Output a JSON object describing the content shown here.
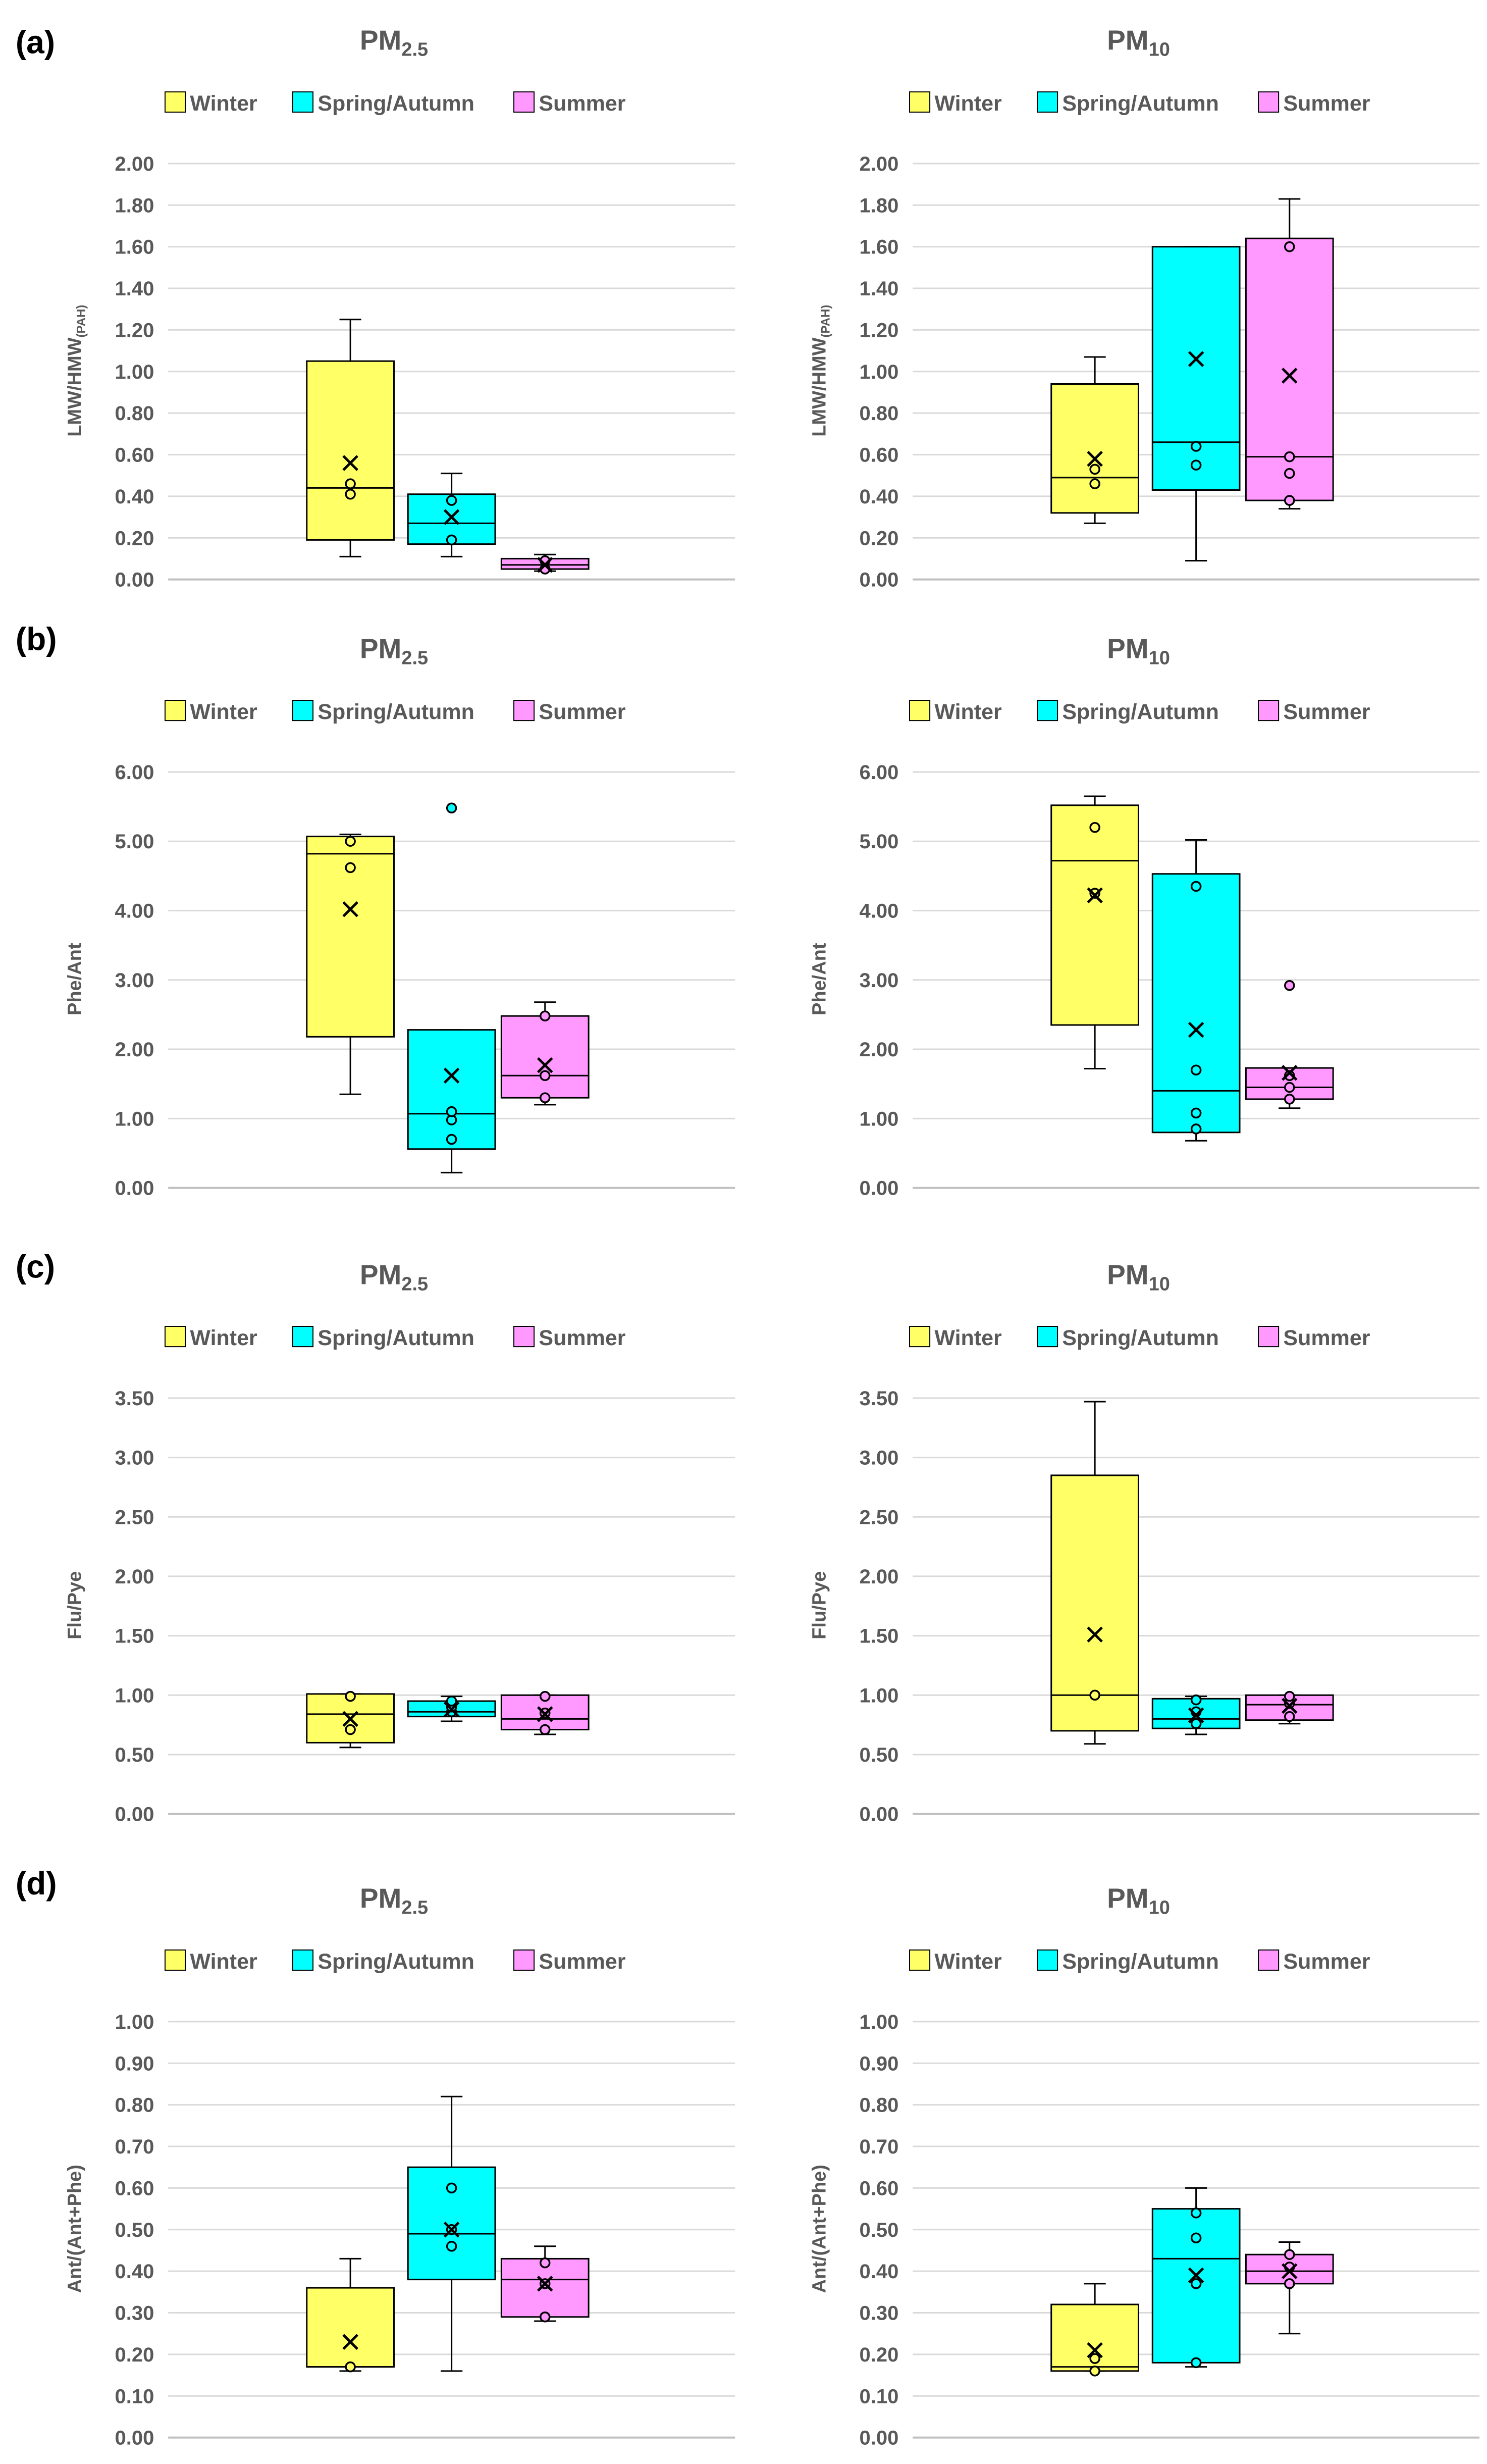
{
  "colors": {
    "winter": "#ffff66",
    "spring_autumn": "#00ffff",
    "summer": "#ff99ff",
    "grid": "#d9d9d9",
    "text": "#595959"
  },
  "legend": {
    "winter": "Winter",
    "spring_autumn": "Spring/Autumn",
    "summer": "Summer"
  },
  "panel_labels": [
    "(a)",
    "(b)",
    "(c)",
    "(d)"
  ],
  "chart_data": [
    {
      "type": "boxplot",
      "panel": "(a)",
      "title_base": "PM",
      "title_sub": "2.5",
      "ylabel_main": "LMW/HMW",
      "ylabel_sub": "(PAH)",
      "ylim": [
        0,
        2
      ],
      "ytick_step": 0.2,
      "ytick_decimals": 2,
      "ytick_labels": [
        "0.00",
        "0.20",
        "0.40",
        "0.60",
        "0.80",
        "1.00",
        "1.20",
        "1.40",
        "1.60",
        "1.80",
        "2.00"
      ],
      "series": [
        {
          "name": "Winter",
          "min": 0.11,
          "q1": 0.19,
          "median": 0.44,
          "q3": 1.05,
          "max": 1.25,
          "mean": 0.56,
          "points": [
            0.41,
            0.46
          ]
        },
        {
          "name": "Spring/Autumn",
          "min": 0.11,
          "q1": 0.17,
          "median": 0.27,
          "q3": 0.41,
          "max": 0.51,
          "mean": 0.3,
          "points": [
            0.19,
            0.38
          ]
        },
        {
          "name": "Summer",
          "min": 0.04,
          "q1": 0.05,
          "median": 0.07,
          "q3": 0.1,
          "max": 0.12,
          "mean": 0.07,
          "points": [
            0.05,
            0.09
          ]
        }
      ]
    },
    {
      "type": "boxplot",
      "panel": "(a)",
      "title_base": "PM",
      "title_sub": "10",
      "ylabel_main": "LMW/HMW",
      "ylabel_sub": "(PAH)",
      "ylim": [
        0,
        2
      ],
      "ytick_step": 0.2,
      "ytick_decimals": 2,
      "ytick_labels": [
        "0.00",
        "0.20",
        "0.40",
        "0.60",
        "0.80",
        "1.00",
        "1.20",
        "1.40",
        "1.60",
        "1.80",
        "2.00"
      ],
      "series": [
        {
          "name": "Winter",
          "min": 0.27,
          "q1": 0.32,
          "median": 0.49,
          "q3": 0.94,
          "max": 1.07,
          "mean": 0.58,
          "points": [
            0.46,
            0.53
          ]
        },
        {
          "name": "Spring/Autumn",
          "min": 0.09,
          "q1": 0.43,
          "median": 0.66,
          "q3": 1.6,
          "max": 1.6,
          "mean": 1.06,
          "points": [
            0.55,
            0.64
          ]
        },
        {
          "name": "Summer",
          "min": 0.34,
          "q1": 0.38,
          "median": 0.59,
          "q3": 1.64,
          "max": 1.83,
          "mean": 0.98,
          "points": [
            0.38,
            0.51,
            0.59,
            1.6
          ]
        }
      ]
    },
    {
      "type": "boxplot",
      "panel": "(b)",
      "title_base": "PM",
      "title_sub": "2.5",
      "ylabel_main": "Phe/Ant",
      "ylabel_sub": "",
      "ylim": [
        0,
        6
      ],
      "ytick_step": 1,
      "ytick_decimals": 2,
      "ytick_labels": [
        "0.00",
        "1.00",
        "2.00",
        "3.00",
        "4.00",
        "5.00",
        "6.00"
      ],
      "series": [
        {
          "name": "Winter",
          "min": 1.35,
          "q1": 2.18,
          "median": 4.82,
          "q3": 5.07,
          "max": 5.1,
          "mean": 4.02,
          "points": [
            4.62,
            5.0
          ]
        },
        {
          "name": "Spring/Autumn",
          "min": 0.22,
          "q1": 0.56,
          "median": 1.07,
          "q3": 2.28,
          "max": 2.28,
          "mean": 1.62,
          "points": [
            0.7,
            0.98,
            1.1,
            5.48
          ]
        },
        {
          "name": "Summer",
          "min": 1.2,
          "q1": 1.3,
          "median": 1.62,
          "q3": 2.48,
          "max": 2.68,
          "mean": 1.77,
          "points": [
            1.3,
            1.62,
            2.48
          ]
        }
      ]
    },
    {
      "type": "boxplot",
      "panel": "(b)",
      "title_base": "PM",
      "title_sub": "10",
      "ylabel_main": "Phe/Ant",
      "ylabel_sub": "",
      "ylim": [
        0,
        6
      ],
      "ytick_step": 1,
      "ytick_decimals": 2,
      "ytick_labels": [
        "0.00",
        "1.00",
        "2.00",
        "3.00",
        "4.00",
        "5.00",
        "6.00"
      ],
      "series": [
        {
          "name": "Winter",
          "min": 1.72,
          "q1": 2.35,
          "median": 4.72,
          "q3": 5.52,
          "max": 5.65,
          "mean": 4.22,
          "points": [
            4.25,
            5.2
          ]
        },
        {
          "name": "Spring/Autumn",
          "min": 0.68,
          "q1": 0.8,
          "median": 1.4,
          "q3": 4.53,
          "max": 5.02,
          "mean": 2.28,
          "points": [
            0.85,
            1.08,
            1.7,
            4.35
          ]
        },
        {
          "name": "Summer",
          "min": 1.15,
          "q1": 1.28,
          "median": 1.45,
          "q3": 1.73,
          "max": 1.73,
          "mean": 1.66,
          "points": [
            1.28,
            1.45,
            1.62,
            2.92
          ]
        }
      ]
    },
    {
      "type": "boxplot",
      "panel": "(c)",
      "title_base": "PM",
      "title_sub": "2.5",
      "ylabel_main": "Flu/Pye",
      "ylabel_sub": "",
      "ylim": [
        0,
        3.5
      ],
      "ytick_step": 0.5,
      "ytick_decimals": 2,
      "ytick_labels": [
        "0.00",
        "0.50",
        "1.00",
        "1.50",
        "2.00",
        "2.50",
        "3.00",
        "3.50"
      ],
      "series": [
        {
          "name": "Winter",
          "min": 0.56,
          "q1": 0.6,
          "median": 0.84,
          "q3": 1.01,
          "max": 1.01,
          "mean": 0.8,
          "points": [
            0.71,
            0.99
          ]
        },
        {
          "name": "Spring/Autumn",
          "min": 0.78,
          "q1": 0.82,
          "median": 0.86,
          "q3": 0.95,
          "max": 0.99,
          "mean": 0.88,
          "points": [
            0.86,
            0.9,
            0.95
          ]
        },
        {
          "name": "Summer",
          "min": 0.67,
          "q1": 0.71,
          "median": 0.8,
          "q3": 1.0,
          "max": 1.0,
          "mean": 0.84,
          "points": [
            0.71,
            0.85,
            0.99
          ]
        }
      ]
    },
    {
      "type": "boxplot",
      "panel": "(c)",
      "title_base": "PM",
      "title_sub": "10",
      "ylabel_main": "Flu/Pye",
      "ylabel_sub": "",
      "ylim": [
        0,
        3.5
      ],
      "ytick_step": 0.5,
      "ytick_decimals": 2,
      "ytick_labels": [
        "0.00",
        "0.50",
        "1.00",
        "1.50",
        "2.00",
        "2.50",
        "3.00",
        "3.50"
      ],
      "series": [
        {
          "name": "Winter",
          "min": 0.59,
          "q1": 0.7,
          "median": 1.0,
          "q3": 2.85,
          "max": 3.47,
          "mean": 1.51,
          "points": [
            1.0
          ]
        },
        {
          "name": "Spring/Autumn",
          "min": 0.67,
          "q1": 0.72,
          "median": 0.8,
          "q3": 0.97,
          "max": 0.99,
          "mean": 0.83,
          "points": [
            0.76,
            0.86,
            0.96
          ]
        },
        {
          "name": "Summer",
          "min": 0.76,
          "q1": 0.79,
          "median": 0.92,
          "q3": 1.0,
          "max": 1.0,
          "mean": 0.91,
          "points": [
            0.82,
            0.93,
            0.99
          ]
        }
      ]
    },
    {
      "type": "boxplot",
      "panel": "(d)",
      "title_base": "PM",
      "title_sub": "2.5",
      "ylabel_main": "Ant/(Ant+Phe)",
      "ylabel_sub": "",
      "ylim": [
        0,
        1
      ],
      "ytick_step": 0.1,
      "ytick_decimals": 2,
      "ytick_labels": [
        "0.00",
        "0.10",
        "0.20",
        "0.30",
        "0.40",
        "0.50",
        "0.60",
        "0.70",
        "0.80",
        "0.90",
        "1.00"
      ],
      "series": [
        {
          "name": "Winter",
          "min": 0.16,
          "q1": 0.17,
          "median": 0.17,
          "q3": 0.36,
          "max": 0.43,
          "mean": 0.23,
          "points": [
            0.17
          ]
        },
        {
          "name": "Spring/Autumn",
          "min": 0.16,
          "q1": 0.38,
          "median": 0.49,
          "q3": 0.65,
          "max": 0.82,
          "mean": 0.5,
          "points": [
            0.46,
            0.5,
            0.6
          ]
        },
        {
          "name": "Summer",
          "min": 0.28,
          "q1": 0.29,
          "median": 0.38,
          "q3": 0.43,
          "max": 0.46,
          "mean": 0.37,
          "points": [
            0.29,
            0.37,
            0.42
          ]
        }
      ]
    },
    {
      "type": "boxplot",
      "panel": "(d)",
      "title_base": "PM",
      "title_sub": "10",
      "ylabel_main": "Ant/(Ant+Phe)",
      "ylabel_sub": "",
      "ylim": [
        0,
        1
      ],
      "ytick_step": 0.1,
      "ytick_decimals": 2,
      "ytick_labels": [
        "0.00",
        "0.10",
        "0.20",
        "0.30",
        "0.40",
        "0.50",
        "0.60",
        "0.70",
        "0.80",
        "0.90",
        "1.00"
      ],
      "series": [
        {
          "name": "Winter",
          "min": 0.16,
          "q1": 0.16,
          "median": 0.17,
          "q3": 0.32,
          "max": 0.37,
          "mean": 0.21,
          "points": [
            0.16,
            0.19
          ]
        },
        {
          "name": "Spring/Autumn",
          "min": 0.17,
          "q1": 0.18,
          "median": 0.43,
          "q3": 0.55,
          "max": 0.6,
          "mean": 0.39,
          "points": [
            0.18,
            0.37,
            0.48,
            0.54
          ]
        },
        {
          "name": "Summer",
          "min": 0.25,
          "q1": 0.37,
          "median": 0.4,
          "q3": 0.44,
          "max": 0.47,
          "mean": 0.4,
          "points": [
            0.37,
            0.41,
            0.44
          ]
        }
      ]
    }
  ]
}
